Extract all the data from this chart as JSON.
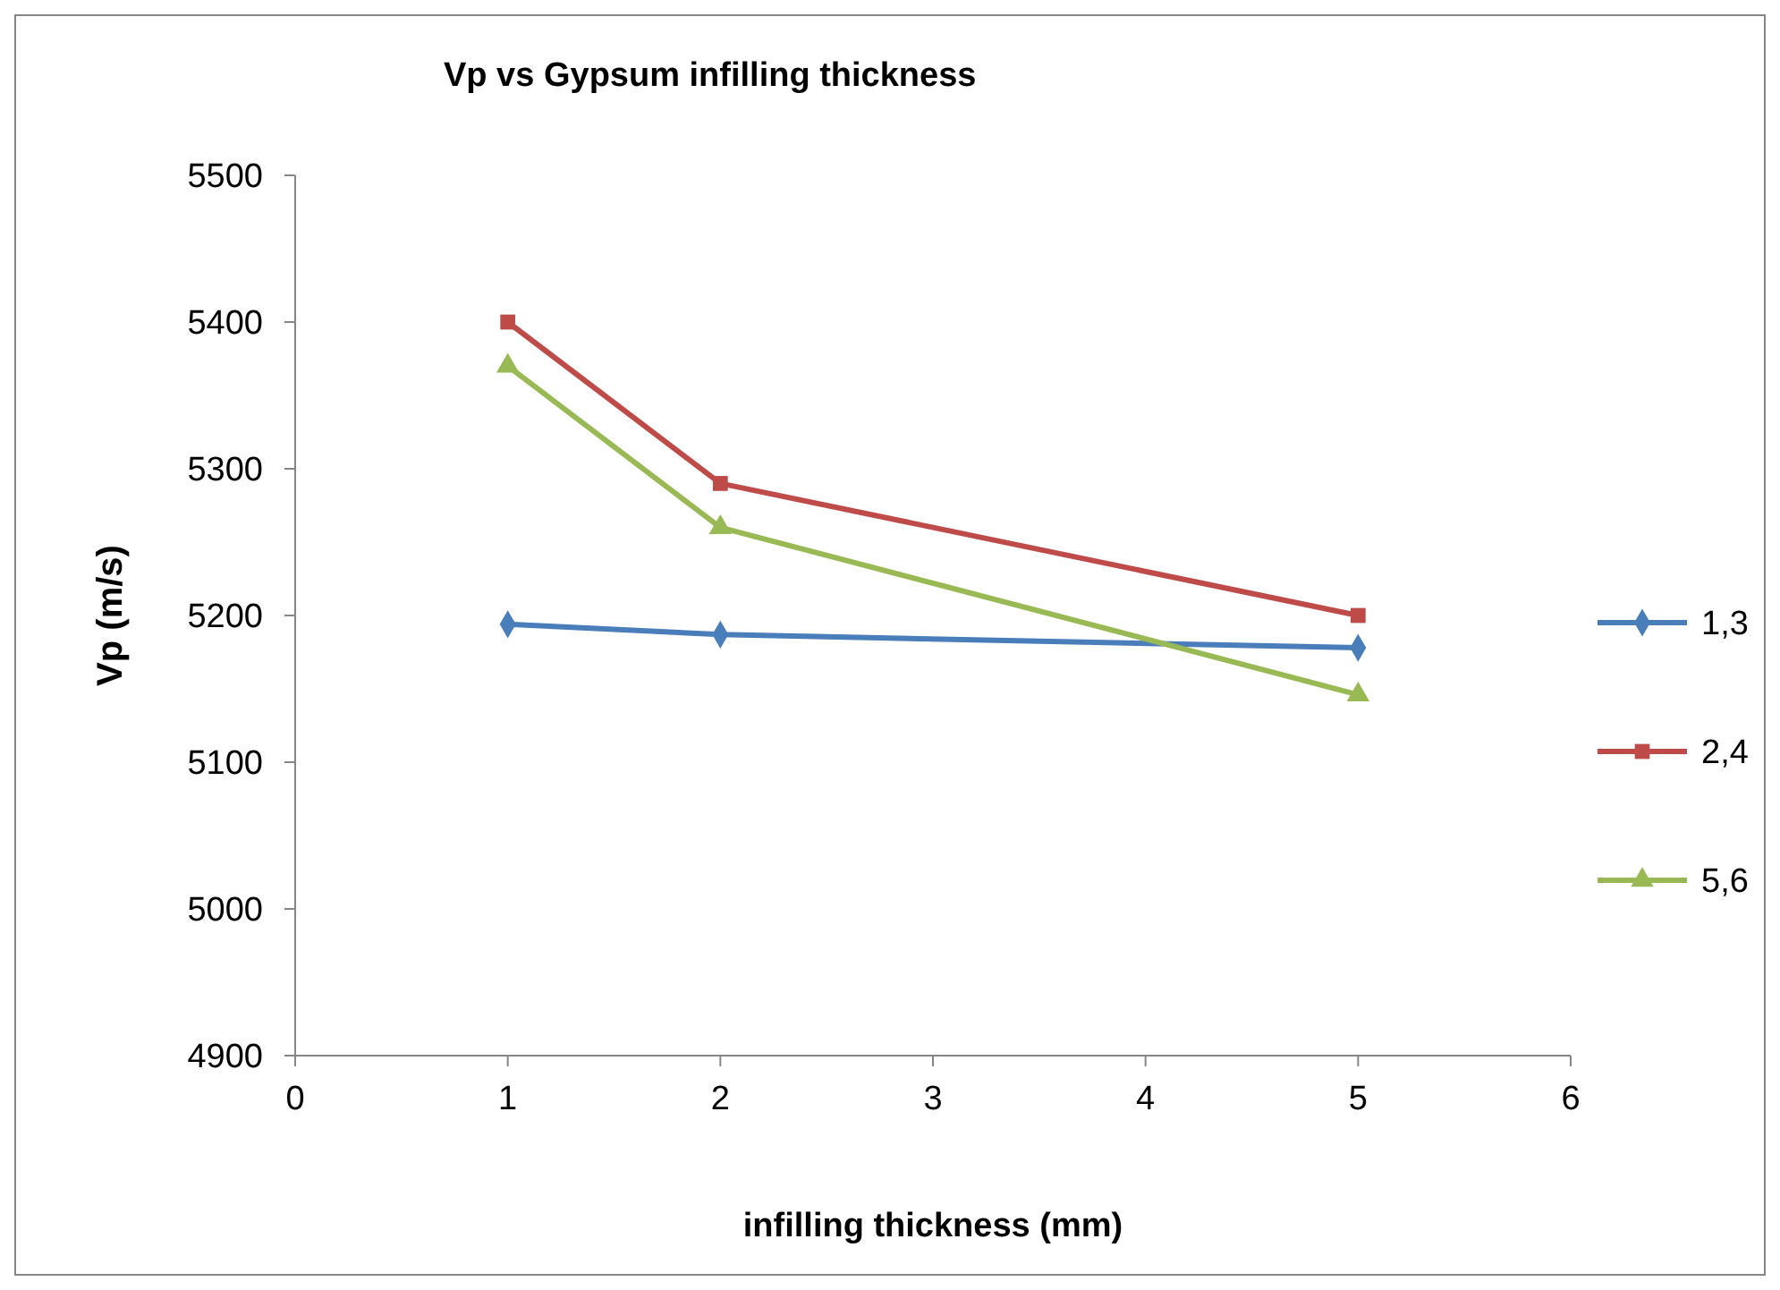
{
  "chart_data": {
    "type": "line",
    "title": "Vp vs Gypsum infilling thickness",
    "xlabel": "infilling thickness (mm)",
    "ylabel": "Vp (m/s)",
    "x": [
      1,
      2,
      5
    ],
    "series": [
      {
        "name": "1,3",
        "color": "#4a7ebb",
        "marker": "diamond",
        "values": [
          5194,
          5187,
          5178
        ]
      },
      {
        "name": "2,4",
        "color": "#be4b48",
        "marker": "square",
        "values": [
          5400,
          5290,
          5200
        ]
      },
      {
        "name": "5,6",
        "color": "#98b954",
        "marker": "triangle",
        "values": [
          5370,
          5260,
          5146
        ]
      }
    ],
    "xlim": [
      0,
      6
    ],
    "xticks": [
      0,
      1,
      2,
      3,
      4,
      5,
      6
    ],
    "ylim": [
      4900,
      5500
    ],
    "yticks": [
      4900,
      5000,
      5100,
      5200,
      5300,
      5400,
      5500
    ],
    "grid": false,
    "legend": "right"
  }
}
